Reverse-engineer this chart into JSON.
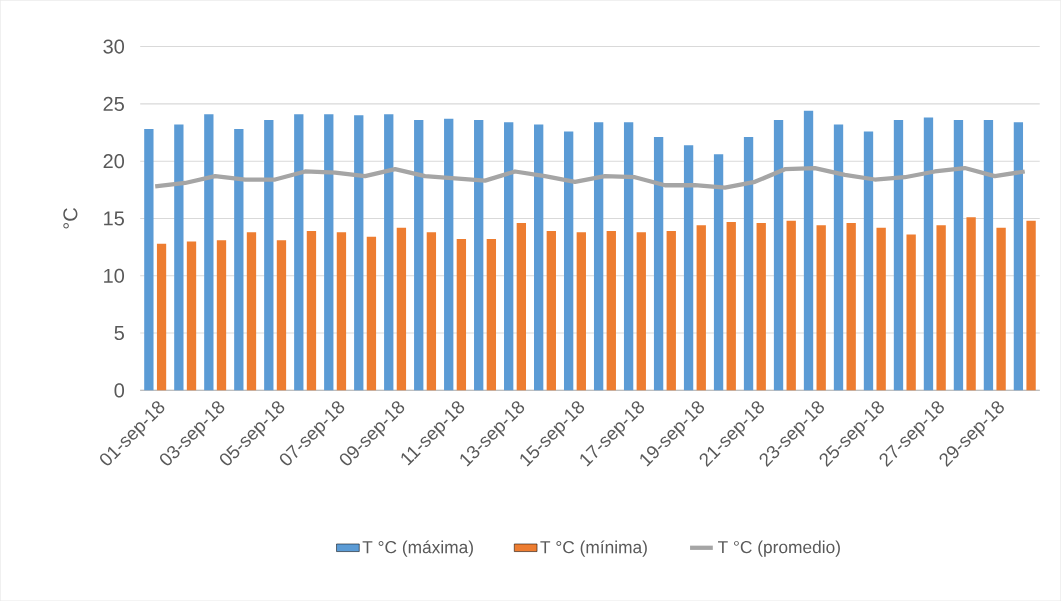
{
  "chart_data": {
    "type": "bar",
    "ylabel": "°C",
    "categories": [
      "01-sep-18",
      null,
      "03-sep-18",
      null,
      "05-sep-18",
      null,
      "07-sep-18",
      null,
      "09-sep-18",
      null,
      "11-sep-18",
      null,
      "13-sep-18",
      null,
      "15-sep-18",
      null,
      "17-sep-18",
      null,
      "19-sep-18",
      null,
      "21-sep-18",
      null,
      "23-sep-18",
      null,
      "25-sep-18",
      null,
      "27-sep-18",
      null,
      "29-sep-18",
      null
    ],
    "series": [
      {
        "name": "T °C (máxima)",
        "color": "#5b9bd5",
        "values": [
          22.8,
          23.2,
          24.1,
          22.8,
          23.6,
          24.1,
          24.1,
          24.0,
          24.1,
          23.6,
          23.7,
          23.6,
          23.4,
          23.2,
          22.6,
          23.4,
          23.4,
          22.1,
          21.4,
          20.6,
          22.1,
          23.6,
          24.4,
          23.2,
          22.6,
          23.6,
          23.8,
          23.6,
          23.6,
          23.4
        ]
      },
      {
        "name": "T °C (mínima)",
        "color": "#ed7d31",
        "values": [
          12.8,
          13.0,
          13.1,
          13.8,
          13.1,
          13.9,
          13.8,
          13.4,
          14.2,
          13.8,
          13.2,
          13.2,
          14.6,
          13.9,
          13.8,
          13.9,
          13.8,
          13.9,
          14.4,
          14.7,
          14.6,
          14.8,
          14.4,
          14.6,
          14.2,
          13.6,
          14.4,
          15.1,
          14.2,
          14.8
        ]
      },
      {
        "name": "T °C (promedio)",
        "type": "line",
        "color": "#a5a5a5",
        "line_style": "solid",
        "values": [
          17.8,
          18.1,
          18.7,
          18.4,
          18.4,
          19.1,
          19.0,
          18.7,
          19.3,
          18.7,
          18.5,
          18.3,
          19.1,
          18.7,
          18.2,
          18.7,
          18.6,
          17.9,
          17.9,
          17.7,
          18.2,
          19.3,
          19.4,
          18.8,
          18.4,
          18.6,
          19.1,
          19.4,
          18.7,
          19.1
        ]
      }
    ],
    "ylim": [
      0,
      30
    ],
    "yticks": [
      0,
      5,
      10,
      15,
      20,
      25,
      30
    ],
    "grid": "y",
    "legend": "bottom",
    "marker": "none"
  }
}
